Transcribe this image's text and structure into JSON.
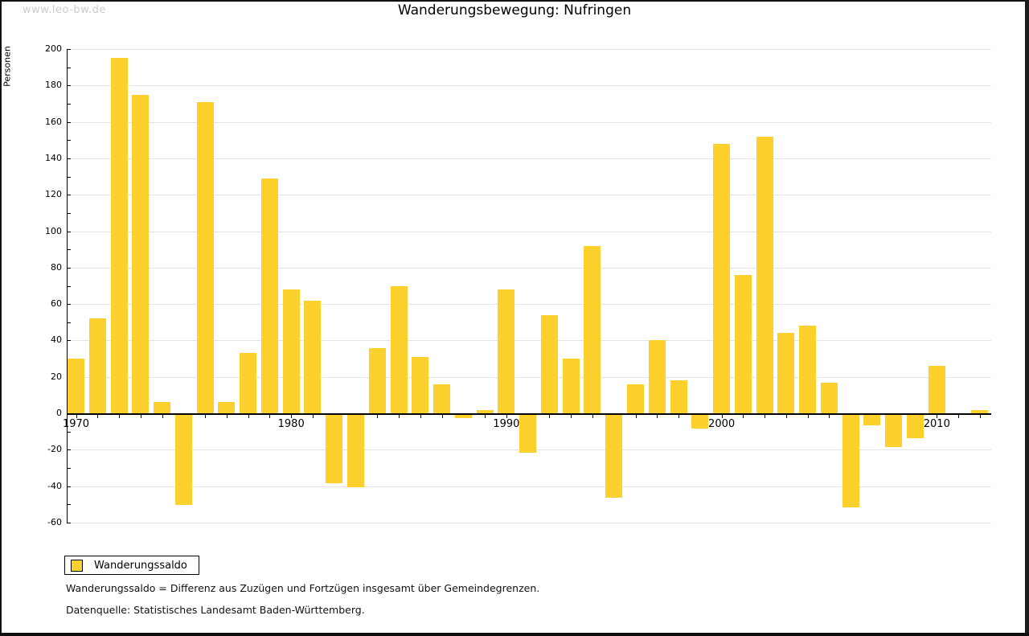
{
  "watermark": "www.leo-bw.de",
  "title": "Wanderungsbewegung: Nufringen",
  "legend": {
    "label": "Wanderungssaldo"
  },
  "footnotes": [
    "Wanderungssaldo = Differenz aus Zuzügen und Fortzügen insgesamt über Gemeindegrenzen.",
    "Datenquelle: Statistisches Landesamt Baden-Württemberg."
  ],
  "colors": {
    "bar": "#FCD12D",
    "grid": "#E3E3E3",
    "axis": "#000000",
    "watermark": "#CBCBCB"
  },
  "chart_data": {
    "type": "bar",
    "title": "Wanderungsbewegung: Nufringen",
    "ylabel": "Personen",
    "xlabel": "",
    "ylim": [
      -60,
      200
    ],
    "ytick_step": 20,
    "minor_tick_step": 10,
    "grid": true,
    "legend_position": "bottom-left",
    "series_name": "Wanderungssaldo",
    "x": [
      1970,
      1971,
      1972,
      1973,
      1974,
      1975,
      1976,
      1977,
      1978,
      1979,
      1980,
      1981,
      1982,
      1983,
      1984,
      1985,
      1986,
      1987,
      1988,
      1989,
      1990,
      1991,
      1992,
      1993,
      1994,
      1995,
      1996,
      1997,
      1998,
      1999,
      2000,
      2001,
      2002,
      2003,
      2004,
      2005,
      2006,
      2007,
      2008,
      2009,
      2010,
      2011,
      2012
    ],
    "values": [
      30,
      52,
      195,
      175,
      6,
      -50,
      171,
      6,
      33,
      129,
      68,
      62,
      -38,
      -40,
      36,
      70,
      31,
      16,
      -2,
      2,
      68,
      -21,
      54,
      30,
      92,
      -46,
      16,
      40,
      18,
      -8,
      148,
      76,
      152,
      44,
      48,
      17,
      -51,
      -6,
      -18,
      -13,
      26,
      0,
      2
    ],
    "yticks": [
      -60,
      -40,
      -20,
      0,
      20,
      40,
      60,
      80,
      100,
      120,
      140,
      160,
      180,
      200
    ],
    "xticks_labeled": [
      1970,
      1980,
      1990,
      2000,
      2010
    ]
  }
}
